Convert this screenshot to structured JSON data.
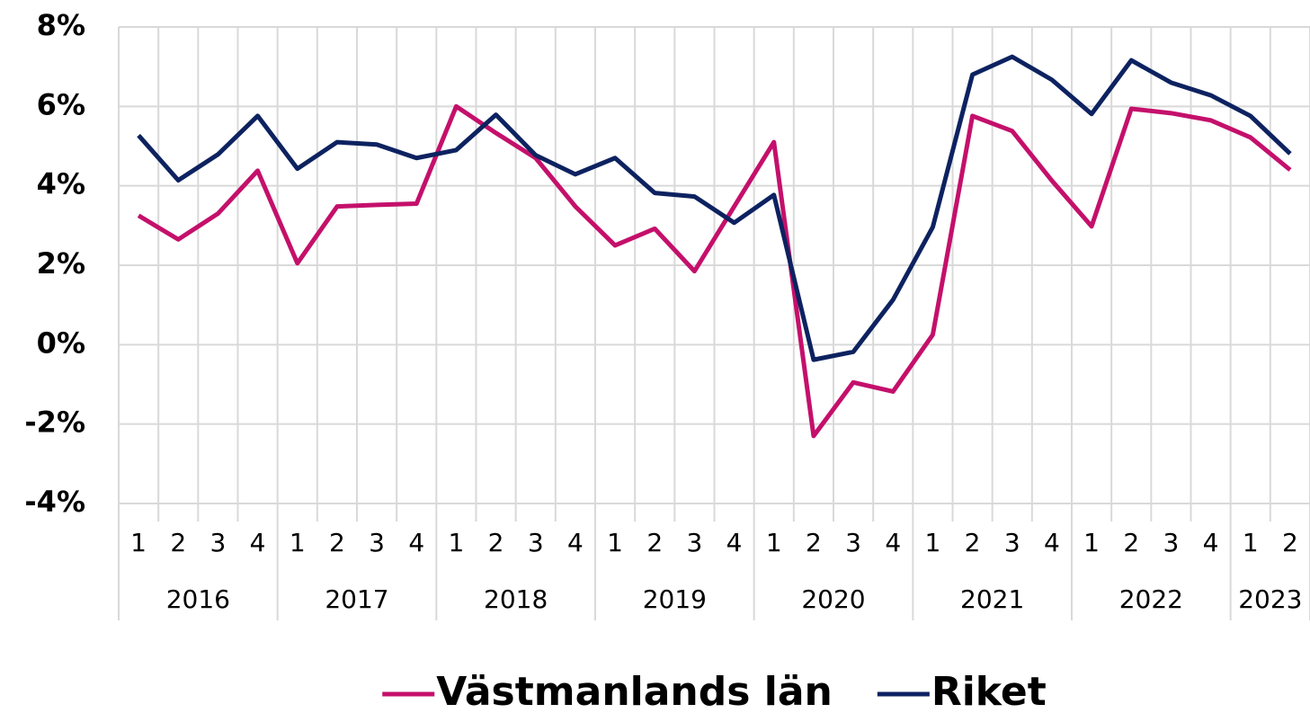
{
  "chart_data": {
    "type": "line",
    "categories": [
      "1",
      "2",
      "3",
      "4",
      "1",
      "2",
      "3",
      "4",
      "1",
      "2",
      "3",
      "4",
      "1",
      "2",
      "3",
      "4",
      "1",
      "2",
      "3",
      "4",
      "1",
      "2",
      "3",
      "4",
      "1",
      "2",
      "3",
      "4",
      "1",
      "2"
    ],
    "groups": [
      "2016",
      "2017",
      "2018",
      "2019",
      "2020",
      "2021",
      "2022",
      "2023"
    ],
    "series": [
      {
        "name": "Västmanlands län",
        "color": "#c4106b",
        "values": [
          3.25,
          2.65,
          3.3,
          4.38,
          2.05,
          3.48,
          3.52,
          3.55,
          6.0,
          5.33,
          4.7,
          3.48,
          2.5,
          2.92,
          1.85,
          3.48,
          5.1,
          -2.3,
          -0.95,
          -1.18,
          0.25,
          5.76,
          5.38,
          4.13,
          2.98,
          5.94,
          5.83,
          5.65,
          5.22,
          4.4
        ]
      },
      {
        "name": "Riket",
        "color": "#0d2260",
        "values": [
          5.27,
          4.14,
          4.79,
          5.76,
          4.43,
          5.1,
          5.04,
          4.7,
          4.9,
          5.79,
          4.77,
          4.29,
          4.7,
          3.82,
          3.73,
          3.07,
          3.77,
          -0.38,
          -0.18,
          1.13,
          2.96,
          6.8,
          7.25,
          6.67,
          5.81,
          7.16,
          6.6,
          6.28,
          5.76,
          4.81
        ]
      }
    ],
    "ylim": [
      -4,
      8
    ],
    "yticks": [
      {
        "value": -4,
        "label": "-4%"
      },
      {
        "value": -2,
        "label": "-2%"
      },
      {
        "value": 0,
        "label": "0%"
      },
      {
        "value": 2,
        "label": "2%"
      },
      {
        "value": 4,
        "label": "4%"
      },
      {
        "value": 6,
        "label": "6%"
      },
      {
        "value": 8,
        "label": "8%"
      }
    ],
    "grid": true,
    "legend": "bottom"
  }
}
